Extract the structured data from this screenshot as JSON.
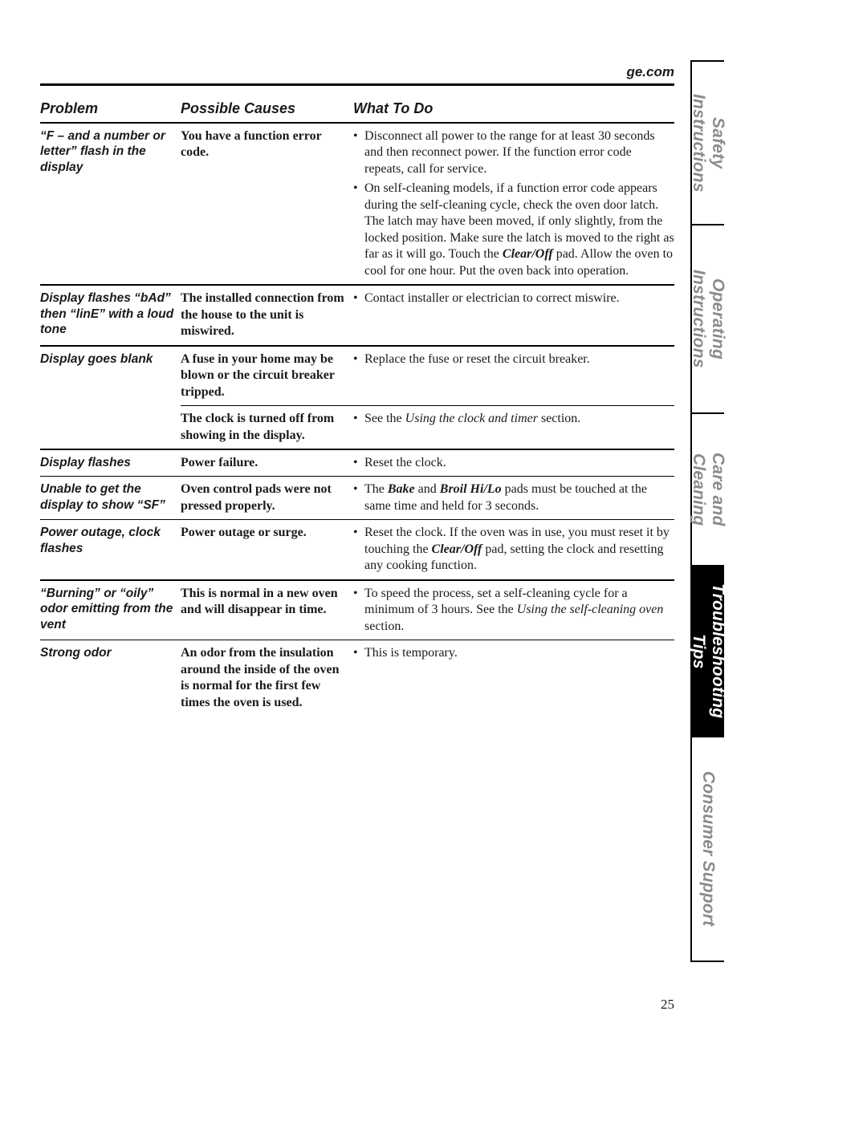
{
  "top_link": "ge.com",
  "page_number": "25",
  "columns": {
    "problem": "Problem",
    "causes": "Possible Causes",
    "todo": "What To Do"
  },
  "tabs": [
    {
      "label": "Safety Instructions",
      "active": false
    },
    {
      "label": "Operating Instructions",
      "active": false
    },
    {
      "label": "Care and Cleaning",
      "active": false
    },
    {
      "label": "Troubleshooting Tips",
      "active": true
    },
    {
      "label": "Consumer Support",
      "active": false
    }
  ],
  "tab_heights_pct": [
    18,
    21,
    17,
    19,
    25
  ],
  "colors": {
    "text": "#1a1a1a",
    "inactive_tab_text": "#8b8b8b",
    "active_tab_bg": "#000000",
    "active_tab_text": "#ffffff",
    "rule": "#000000"
  },
  "rows": [
    {
      "sep": "none",
      "problem": "“F – and a number or letter” flash in the display",
      "cause": "You have a function error code.",
      "todo_html": "<div class='bullet-item'><span class='bullet-glyph'>•</span><span class='bullet-text'>Disconnect all power to the range for at least 30 seconds and then reconnect power. If the function error code repeats, call for service.</span></div><div class='bullet-item'><span class='bullet-glyph'>•</span><span class='bullet-text'>On self-cleaning models, if a function error code appears during the self-cleaning cycle, check the oven door latch. The latch may have been moved, if only slightly, from the locked position. Make sure the latch is moved to the right as far as it will go. Touch the <b><i>Clear/Off</i></b> pad. Allow the oven to cool for one hour. Put the oven back into operation.</span></div>"
    },
    {
      "sep": "heavy",
      "problem": "Display flashes “bAd” then “linE” with a loud tone",
      "cause": "The installed connection from the house to the unit is miswired.",
      "todo_html": "<div class='bullet-item'><span class='bullet-glyph'>•</span><span class='bullet-text'>Contact installer or electrician to correct miswire.</span></div>"
    },
    {
      "sep": "heavy",
      "problem": "Display goes blank",
      "cause": "A fuse in your home may be blown or the circuit breaker tripped.",
      "todo_html": "<div class='bullet-item'><span class='bullet-glyph'>•</span><span class='bullet-text'>Replace the fuse or reset the circuit breaker.</span></div>"
    },
    {
      "sep": "light-inner",
      "problem": "",
      "cause": "The clock is turned off from showing in the display.",
      "todo_html": "<div class='bullet-item'><span class='bullet-glyph'>•</span><span class='bullet-text'>See the <i>Using the clock and timer</i> section.</span></div>"
    },
    {
      "sep": "heavy",
      "problem": "Display flashes",
      "cause": "Power failure.",
      "todo_html": "<div class='bullet-item'><span class='bullet-glyph'>•</span><span class='bullet-text'>Reset the clock.</span></div>"
    },
    {
      "sep": "light",
      "problem": "Unable to get the display to show “SF”",
      "cause": "Oven control pads were not pressed properly.",
      "todo_html": "<div class='bullet-item'><span class='bullet-glyph'>•</span><span class='bullet-text'>The <b><i>Bake</i></b> and <b><i>Broil Hi/Lo</i></b> pads must be touched at the same time and held for 3 seconds.</span></div>"
    },
    {
      "sep": "light",
      "problem": "Power outage, clock flashes",
      "cause": "Power outage or surge.",
      "todo_html": "<div class='bullet-item'><span class='bullet-glyph'>•</span><span class='bullet-text'>Reset the clock. If the oven was in use, you must reset it by touching the <b><i>Clear/Off</i></b> pad, setting the clock and resetting any cooking function.</span></div>"
    },
    {
      "sep": "heavy",
      "problem": "“Burning” or “oily” odor emitting from the vent",
      "cause": "This is normal in a new oven and will disappear in time.",
      "todo_html": "<div class='bullet-item'><span class='bullet-glyph'>•</span><span class='bullet-text'>To speed the process, set a self-cleaning cycle for a minimum of 3 hours. See the <i>Using the self-cleaning oven</i> section.</span></div>"
    },
    {
      "sep": "light",
      "problem": "Strong odor",
      "cause": "An odor from the insulation around the inside of the oven is normal for the first few times the oven is used.",
      "todo_html": "<div class='bullet-item'><span class='bullet-glyph'>•</span><span class='bullet-text'>This is temporary.</span></div>"
    }
  ]
}
